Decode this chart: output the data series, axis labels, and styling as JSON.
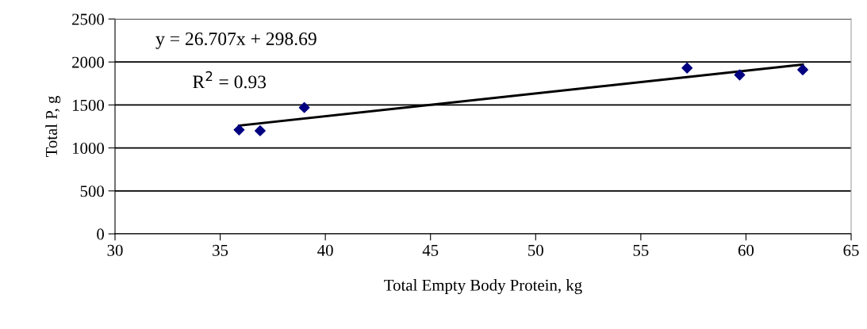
{
  "chart_data": {
    "type": "scatter",
    "xlabel": "Total Empty Body Protein, kg",
    "ylabel": "Total P, g",
    "series": [
      {
        "color": "#000080",
        "marker": "diamond",
        "x": [
          35.9,
          36.9,
          39.0,
          57.2,
          59.7,
          62.7
        ],
        "values": [
          1210,
          1200,
          1470,
          1930,
          1850,
          1910
        ]
      },
      {
        "type": "line",
        "color": "#000000",
        "marker": "none",
        "x": [
          35.9,
          62.7
        ],
        "values": [
          1260,
          1970
        ]
      }
    ],
    "annotations": [
      "y = 26.707x + 298.69",
      "R$^{2}$ = 0.93"
    ],
    "xlim": [
      30,
      65
    ],
    "xticks": [
      30,
      35,
      40,
      45,
      50,
      55,
      60,
      65
    ],
    "ylim": [
      0,
      2500
    ],
    "yticks": [
      0,
      500,
      1000,
      1500,
      2000,
      2500
    ],
    "grid": "y",
    "legend": false
  }
}
